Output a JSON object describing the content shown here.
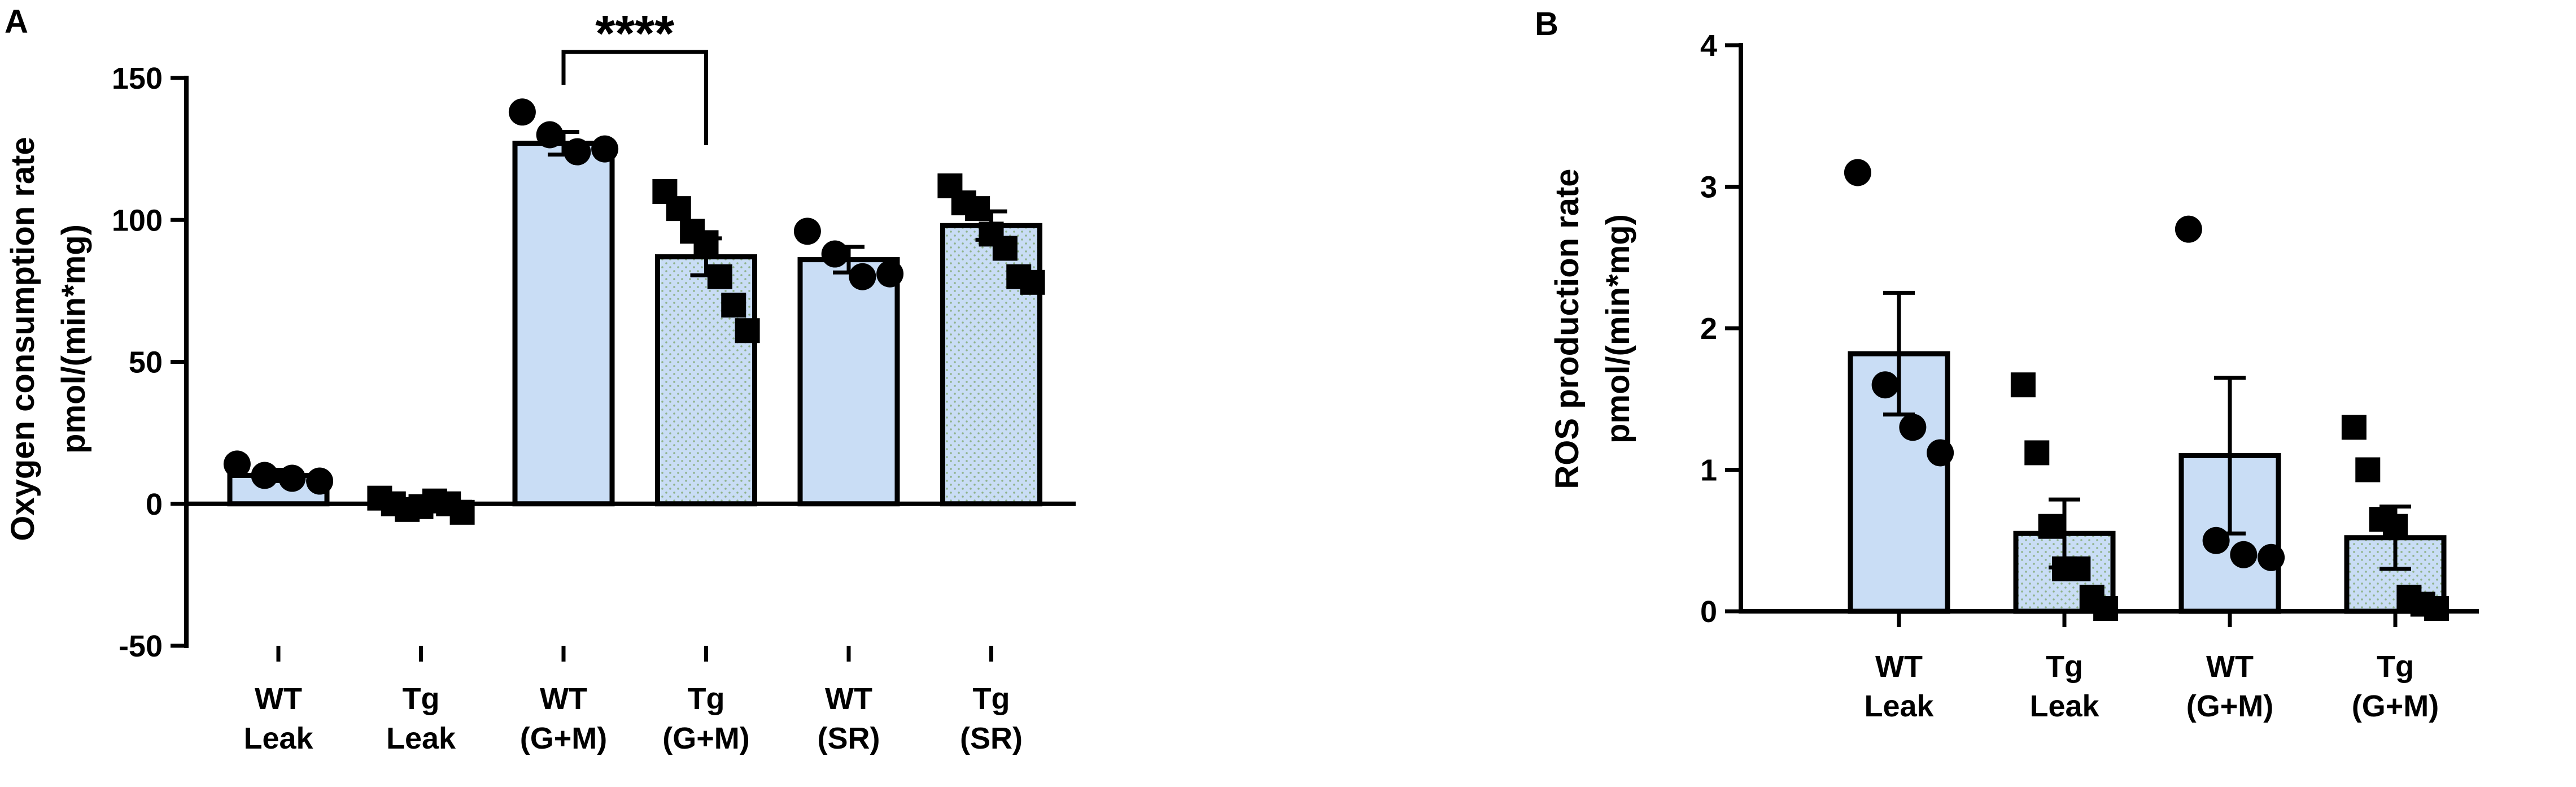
{
  "chart_data": [
    {
      "panel": "A",
      "type": "bar",
      "ylabel": [
        "Oxygen consumption rate",
        "pmol/(min*mg)"
      ],
      "ylim": [
        -50,
        150
      ],
      "yticks": [
        "150",
        "100",
        "50",
        "0",
        "-50"
      ],
      "ytick_values": [
        150,
        100,
        50,
        0,
        -50
      ],
      "categories": [
        [
          "WT",
          "Leak"
        ],
        [
          "Tg",
          "Leak"
        ],
        [
          "WT",
          "(G+M)"
        ],
        [
          "Tg",
          "(G+M)"
        ],
        [
          "WT",
          "(SR)"
        ],
        [
          "Tg",
          "(SR)"
        ]
      ],
      "values": [
        10,
        0.5,
        127,
        87,
        86,
        98
      ],
      "sem": [
        2,
        1,
        4,
        6.5,
        4.5,
        5
      ],
      "genotype": [
        "WT",
        "Tg",
        "WT",
        "Tg",
        "WT",
        "Tg"
      ],
      "points": [
        [
          14,
          10,
          9,
          8
        ],
        [
          2,
          0,
          -2,
          -1,
          1,
          0,
          -3
        ],
        [
          138,
          130,
          124,
          125
        ],
        [
          110,
          104,
          96,
          92,
          80,
          70,
          61
        ],
        [
          96,
          88,
          80,
          81
        ],
        [
          112,
          106,
          104,
          95,
          90,
          80,
          78
        ]
      ],
      "significance": {
        "from": 2,
        "to": 3,
        "label": "****"
      }
    },
    {
      "panel": "B",
      "type": "bar",
      "ylabel": [
        "ROS production rate",
        "pmol/(min*mg)"
      ],
      "ylim": [
        0,
        4
      ],
      "yticks": [
        "4",
        "3",
        "2",
        "1",
        "0"
      ],
      "ytick_values": [
        4,
        3,
        2,
        1,
        0
      ],
      "categories": [
        [
          "WT",
          "Leak"
        ],
        [
          "Tg",
          "Leak"
        ],
        [
          "WT",
          "(G+M)"
        ],
        [
          "Tg",
          "(G+M)"
        ]
      ],
      "values": [
        1.82,
        0.55,
        1.1,
        0.52
      ],
      "sem": [
        0.43,
        0.24,
        0.55,
        0.22
      ],
      "genotype": [
        "WT",
        "Tg",
        "WT",
        "Tg"
      ],
      "points": [
        [
          3.1,
          1.6,
          1.3,
          1.12
        ],
        [
          1.6,
          1.12,
          0.6,
          0.3,
          0.3,
          0.1,
          0.02
        ],
        [
          2.7,
          0.5,
          0.4,
          0.38
        ],
        [
          1.3,
          1.0,
          0.65,
          0.6,
          0.1,
          0.05,
          0.02
        ]
      ]
    }
  ],
  "colors": {
    "bar_fill": "#c9ddf5",
    "stroke": "#000000",
    "dots": "#a8c7a0"
  }
}
